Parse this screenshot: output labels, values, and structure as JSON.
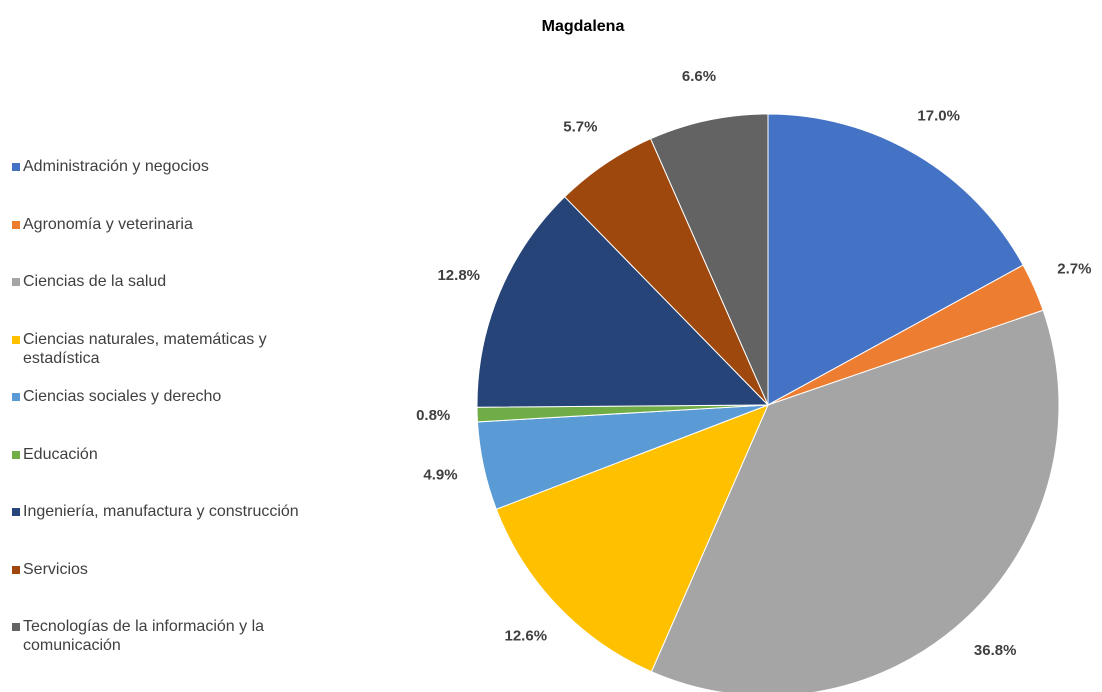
{
  "chart_data": {
    "type": "pie",
    "title": "Magdalena",
    "categories": [
      "Administración y negocios",
      "Agronomía y veterinaria",
      "Ciencias de la salud",
      "Ciencias naturales, matemáticas y estadística",
      "Ciencias sociales y derecho",
      "Educación",
      "Ingeniería, manufactura y construcción",
      "Servicios",
      "Tecnologías de la información y la comunicación"
    ],
    "values": [
      17.0,
      2.7,
      36.8,
      12.6,
      4.9,
      0.8,
      12.8,
      5.7,
      6.6
    ],
    "value_labels": [
      "17.0%",
      "2.7%",
      "36.8%",
      "12.6%",
      "4.9%",
      "0.8%",
      "12.8%",
      "5.7%",
      "6.6%"
    ],
    "colors": [
      "#4472c4",
      "#ed7d31",
      "#a5a5a5",
      "#ffc000",
      "#5b9bd5",
      "#70ad47",
      "#264478",
      "#9e480e",
      "#636363"
    ],
    "legend": "left"
  }
}
